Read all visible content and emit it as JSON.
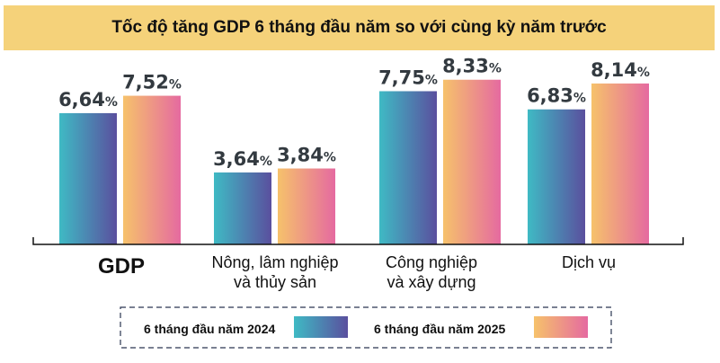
{
  "title": "Tốc độ tăng GDP 6 tháng đầu năm so với cùng kỳ năm trước",
  "chart_data": {
    "type": "bar",
    "title": "Tốc độ tăng GDP 6 tháng đầu năm so với cùng kỳ năm trước",
    "categories": [
      "GDP",
      "Nông, lâm nghiệp và thủy sản",
      "Công nghiệp và xây dựng",
      "Dịch vụ"
    ],
    "category_lines": [
      [
        "GDP"
      ],
      [
        "Nông, lâm nghiệp",
        "và thủy sản"
      ],
      [
        "Công nghiệp",
        "và xây dựng"
      ],
      [
        "Dịch vụ"
      ]
    ],
    "series": [
      {
        "name": "6 tháng đầu năm 2024",
        "values": [
          6.64,
          3.64,
          7.75,
          6.83
        ],
        "labels": [
          "6,64",
          "3,64",
          "7,75",
          "6,83"
        ]
      },
      {
        "name": "6 tháng đầu năm 2025",
        "values": [
          7.52,
          3.84,
          8.33,
          8.14
        ],
        "labels": [
          "7,52",
          "3,84",
          "8,33",
          "8,14"
        ]
      }
    ],
    "unit": "%",
    "ylim": [
      0,
      8.5
    ],
    "grid": false,
    "legend_position": "bottom",
    "colors": {
      "series_2024": [
        "#3fbac4",
        "#5a4f9e"
      ],
      "series_2025": [
        "#f6c26b",
        "#e56aa0"
      ],
      "title_band": "#f5d27a"
    }
  }
}
